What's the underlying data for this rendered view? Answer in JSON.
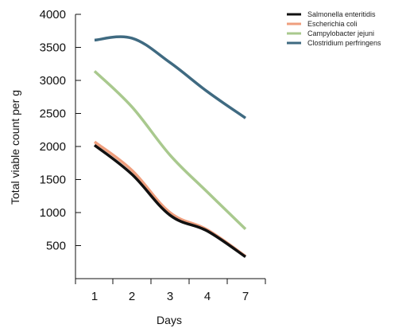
{
  "chart_data": {
    "type": "line",
    "title": "",
    "xlabel": "Days",
    "ylabel": "Total viable count per g",
    "categories": [
      "1",
      "2",
      "3",
      "4",
      "7"
    ],
    "yticks": [
      500,
      1000,
      1500,
      2000,
      2500,
      3000,
      3500,
      4000
    ],
    "ylim": [
      0,
      4000
    ],
    "grid": false,
    "legend_position": "top-right",
    "series": [
      {
        "name": "Salmonella enteritidis",
        "color": "#111111",
        "values": [
          2020,
          1580,
          960,
          720,
          330
        ]
      },
      {
        "name": "Escherichia coli",
        "color": "#ef9f7e",
        "values": [
          2070,
          1640,
          1000,
          740,
          340
        ]
      },
      {
        "name": "Campylobacter jejuni",
        "color": "#a9c98e",
        "values": [
          3140,
          2600,
          1870,
          1310,
          750
        ]
      },
      {
        "name": "Clostridium perfringens",
        "color": "#3f6a81",
        "values": [
          3610,
          3640,
          3270,
          2830,
          2430
        ]
      }
    ]
  }
}
